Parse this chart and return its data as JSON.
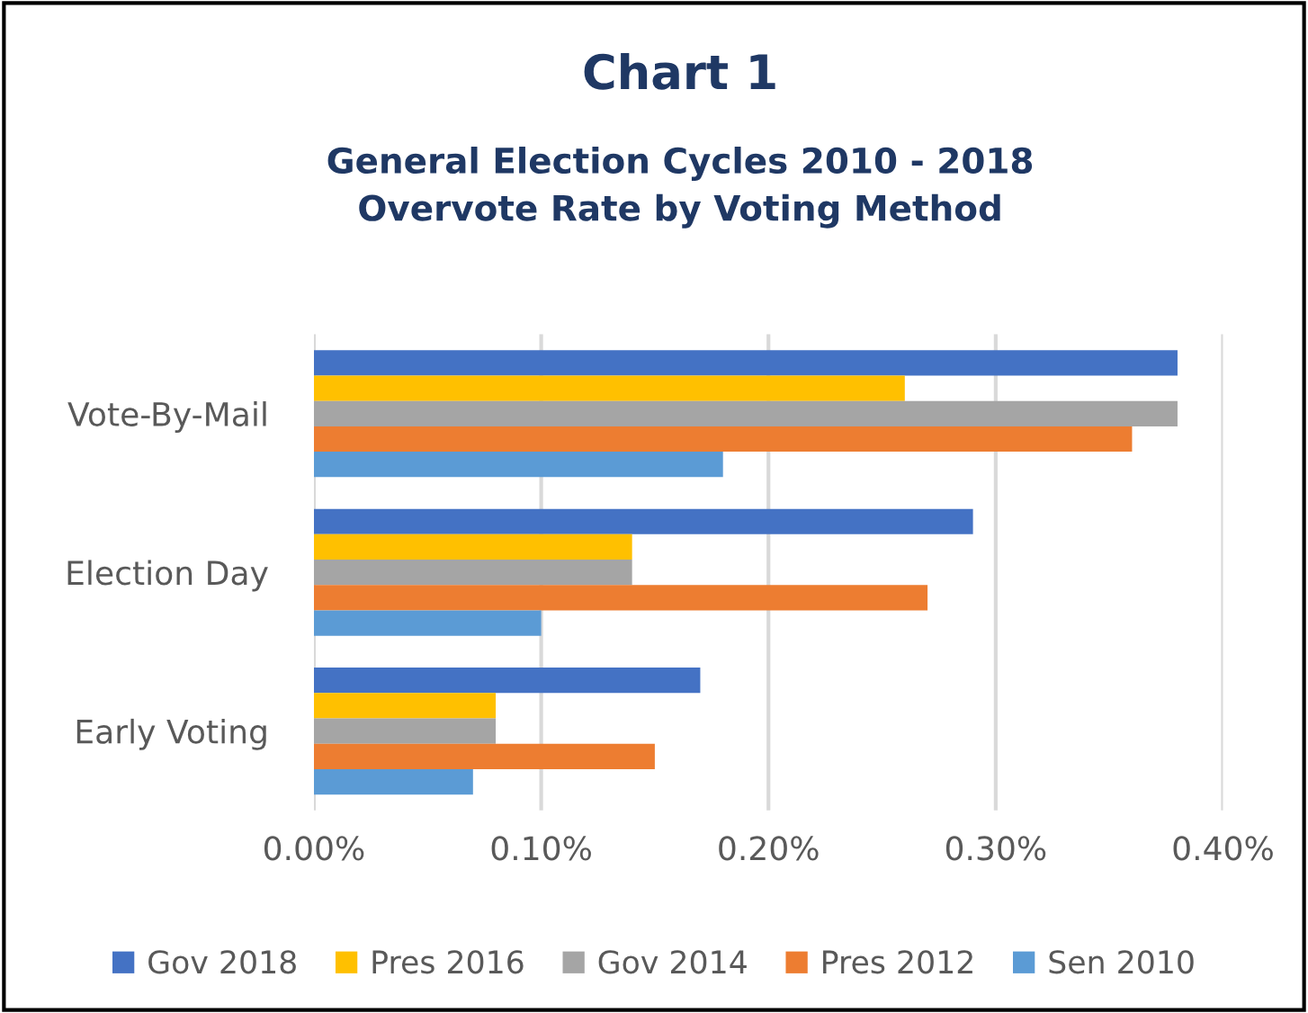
{
  "chart_data": {
    "type": "bar",
    "orientation": "horizontal",
    "title": "Chart 1",
    "subtitle": "General Election Cycles 2010 - 2018\nOvervote Rate by Voting Method",
    "categories": [
      "Vote-By-Mail",
      "Election Day",
      "Early Voting"
    ],
    "series": [
      {
        "name": "Gov 2018",
        "color": "#4472c4",
        "values": [
          0.38,
          0.29,
          0.17
        ]
      },
      {
        "name": "Pres 2016",
        "color": "#ffc000",
        "values": [
          0.26,
          0.14,
          0.08
        ]
      },
      {
        "name": "Gov 2014",
        "color": "#a5a5a5",
        "values": [
          0.38,
          0.14,
          0.08
        ]
      },
      {
        "name": "Pres 2012",
        "color": "#ed7d31",
        "values": [
          0.36,
          0.27,
          0.15
        ]
      },
      {
        "name": "Sen 2010",
        "color": "#5b9bd5",
        "values": [
          0.18,
          0.1,
          0.07
        ]
      }
    ],
    "xlim": [
      0,
      0.4
    ],
    "xticks": [
      {
        "value": 0,
        "label": "0.00%"
      },
      {
        "value": 0.1,
        "label": "0.10%"
      },
      {
        "value": 0.2,
        "label": "0.20%"
      },
      {
        "value": 0.3,
        "label": "0.30%"
      },
      {
        "value": 0.4,
        "label": "0.40%"
      }
    ],
    "grid": "x",
    "legend": "bottom"
  }
}
